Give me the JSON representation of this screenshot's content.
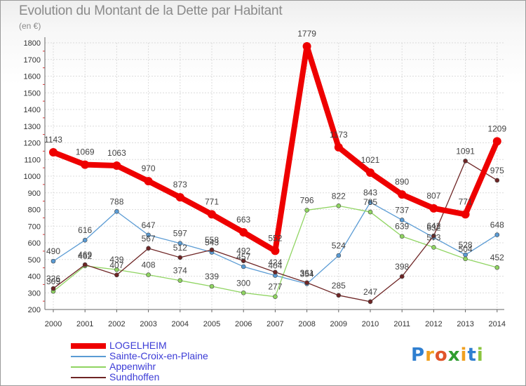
{
  "chart_data": {
    "type": "line",
    "title": "Evolution du Montant de la Dette par Habitant",
    "unit_label": "(en €)",
    "xlabel": "",
    "ylabel": "",
    "ylim": [
      200,
      1800
    ],
    "y_ticks": [
      200,
      300,
      400,
      500,
      600,
      700,
      800,
      900,
      1000,
      1100,
      1200,
      1300,
      1400,
      1500,
      1600,
      1700,
      1800
    ],
    "grid": true,
    "legend_position": "bottom-left",
    "categories": [
      "2000",
      "2001",
      "2002",
      "2003",
      "2004",
      "2005",
      "2006",
      "2007",
      "2008",
      "2009",
      "2010",
      "2011",
      "2012",
      "2013",
      "2014"
    ],
    "series": [
      {
        "name": "LOGELHEIM",
        "color": "#ee0000",
        "emphasis": true,
        "values": [
          1143,
          1069,
          1063,
          970,
          873,
          771,
          663,
          552,
          1779,
          1173,
          1021,
          890,
          807,
          771,
          1209
        ]
      },
      {
        "name": "Sainte-Croix-en-Plaine",
        "color": "#5a9bd4",
        "emphasis": false,
        "values": [
          490,
          616,
          788,
          647,
          597,
          543,
          457,
          404,
          354,
          524,
          843,
          737,
          632,
          528,
          648
        ]
      },
      {
        "name": "Appenwihr",
        "color": "#8fd461",
        "emphasis": false,
        "values": [
          309,
          462,
          439,
          408,
          374,
          339,
          300,
          277,
          796,
          822,
          785,
          639,
          573,
          504,
          452
        ]
      },
      {
        "name": "Sundhoffen",
        "color": "#6e2525",
        "emphasis": false,
        "values": [
          326,
          469,
          407,
          567,
          512,
          558,
          492,
          424,
          361,
          285,
          247,
          398,
          642,
          1091,
          975
        ]
      }
    ]
  },
  "logo": {
    "letters": [
      "P",
      "r",
      "o",
      "x",
      "i",
      "t",
      "i"
    ],
    "colors": [
      "#2f7fd0",
      "#f0a020",
      "#e0552a",
      "#2f9d2f",
      "#f0a020",
      "#2f7fd0",
      "#8ac43f"
    ]
  }
}
